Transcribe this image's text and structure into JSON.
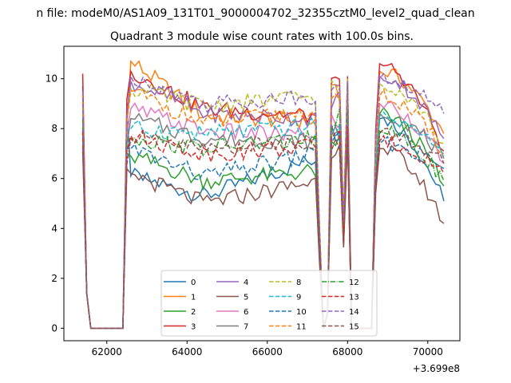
{
  "suptitle": "n file: modeM0/AS1A09_131T01_9000004702_32355cztM0_level2_quad_clean",
  "title": "Quadrant 3 module wise count rates with 100.0s bins.",
  "offset_label": "+3.699e8",
  "chart_data": {
    "type": "line",
    "title": "Quadrant 3 module wise count rates with 100.0s bins.",
    "xlabel": "",
    "ylabel": "",
    "x_offset": 369900000,
    "xlim": [
      60930,
      70800
    ],
    "ylim": [
      -0.5,
      11.3
    ],
    "xticks": [
      62000,
      64000,
      66000,
      68000,
      70000
    ],
    "yticks": [
      0,
      2,
      4,
      6,
      8,
      10
    ],
    "grid": false,
    "legend": "lower center, 4 columns",
    "series": [
      {
        "name": "0",
        "color": "#1f77b4",
        "dash": "solid",
        "pre": 9.7,
        "seg1_start": 6.1,
        "seg1_mid": 5.3,
        "seg1_end": 6.8,
        "seg2": 7.9,
        "seg3_start": 8.4,
        "seg3_end": 5.1
      },
      {
        "name": "1",
        "color": "#ff7f0e",
        "dash": "solid",
        "pre": 9.0,
        "seg1_start": 10.7,
        "seg1_mid": 8.5,
        "seg1_end": 8.3,
        "seg2": 9.4,
        "seg3_start": 10.3,
        "seg3_end": 7.8
      },
      {
        "name": "2",
        "color": "#2ca02c",
        "dash": "solid",
        "pre": 7.8,
        "seg1_start": 6.9,
        "seg1_mid": 5.9,
        "seg1_end": 6.3,
        "seg2": 7.5,
        "seg3_start": 8.6,
        "seg3_end": 5.7
      },
      {
        "name": "3",
        "color": "#d62728",
        "dash": "solid",
        "pre": 10.2,
        "seg1_start": 10.3,
        "seg1_mid": 8.8,
        "seg1_end": 8.5,
        "seg2": 9.7,
        "seg3_start": 10.6,
        "seg3_end": 7.1
      },
      {
        "name": "4",
        "color": "#9467bd",
        "dash": "solid",
        "pre": 9.3,
        "seg1_start": 9.9,
        "seg1_mid": 8.6,
        "seg1_end": 8.4,
        "seg2": 9.2,
        "seg3_start": 10.1,
        "seg3_end": 7.6
      },
      {
        "name": "5",
        "color": "#8c564b",
        "dash": "solid",
        "pre": 7.1,
        "seg1_start": 6.2,
        "seg1_mid": 5.0,
        "seg1_end": 5.9,
        "seg2": 7.2,
        "seg3_start": 7.2,
        "seg3_end": 4.2
      },
      {
        "name": "6",
        "color": "#e377c2",
        "dash": "solid",
        "pre": 8.6,
        "seg1_start": 8.8,
        "seg1_mid": 7.9,
        "seg1_end": 7.7,
        "seg2": 8.3,
        "seg3_start": 9.0,
        "seg3_end": 6.6
      },
      {
        "name": "7",
        "color": "#7f7f7f",
        "dash": "solid",
        "pre": 8.2,
        "seg1_start": 8.4,
        "seg1_mid": 7.6,
        "seg1_end": 7.5,
        "seg2": 7.9,
        "seg3_start": 8.6,
        "seg3_end": 6.8
      },
      {
        "name": "8",
        "color": "#bcbd22",
        "dash": "dashed",
        "pre": 9.1,
        "seg1_start": 9.6,
        "seg1_mid": 8.9,
        "seg1_end": 9.3,
        "seg2": 9.6,
        "seg3_start": 9.8,
        "seg3_end": 7.4
      },
      {
        "name": "9",
        "color": "#17becf",
        "dash": "dashed",
        "pre": 8.8,
        "seg1_start": 8.0,
        "seg1_mid": 7.8,
        "seg1_end": 8.1,
        "seg2": 8.1,
        "seg3_start": 8.5,
        "seg3_end": 6.9
      },
      {
        "name": "10",
        "color": "#1f77b4",
        "dash": "dashed",
        "pre": 8.0,
        "seg1_start": 7.2,
        "seg1_mid": 6.1,
        "seg1_end": 7.0,
        "seg2": 7.6,
        "seg3_start": 7.4,
        "seg3_end": 6.4
      },
      {
        "name": "11",
        "color": "#ff7f0e",
        "dash": "dashed",
        "pre": 9.4,
        "seg1_start": 9.5,
        "seg1_mid": 8.2,
        "seg1_end": 8.7,
        "seg2": 9.0,
        "seg3_start": 9.3,
        "seg3_end": 7.0
      },
      {
        "name": "12",
        "color": "#2ca02c",
        "dash": "dashdot",
        "pre": 8.4,
        "seg1_start": 7.6,
        "seg1_mid": 7.2,
        "seg1_end": 7.6,
        "seg2": 8.4,
        "seg3_start": 7.9,
        "seg3_end": 5.9
      },
      {
        "name": "13",
        "color": "#d62728",
        "dash": "dashed",
        "pre": 7.9,
        "seg1_start": 7.7,
        "seg1_mid": 7.0,
        "seg1_end": 7.3,
        "seg2": 7.7,
        "seg3_start": 7.5,
        "seg3_end": 6.2
      },
      {
        "name": "14",
        "color": "#9467bd",
        "dash": "dashed",
        "pre": 9.5,
        "seg1_start": 10.1,
        "seg1_mid": 9.0,
        "seg1_end": 9.3,
        "seg2": 9.5,
        "seg3_start": 10.0,
        "seg3_end": 8.6
      },
      {
        "name": "15",
        "color": "#8c564b",
        "dash": "dashed",
        "pre": 7.3,
        "seg1_start": 7.6,
        "seg1_mid": 7.2,
        "seg1_end": 7.5,
        "seg2": 7.3,
        "seg3_start": 7.8,
        "seg3_end": 6.6
      }
    ]
  }
}
